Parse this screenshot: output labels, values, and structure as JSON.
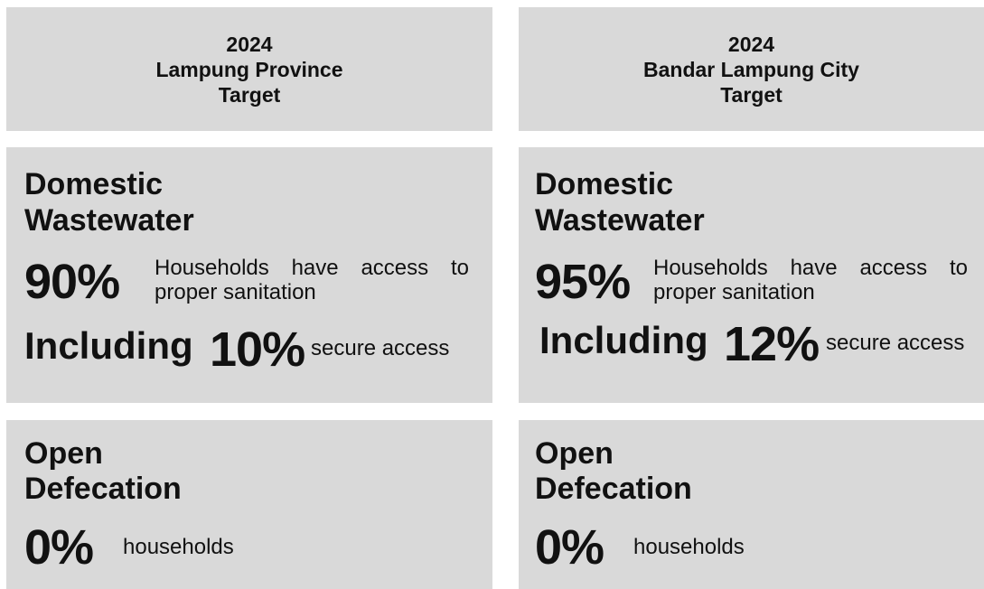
{
  "columns": [
    {
      "header": {
        "year": "2024",
        "name": "Lampung Province",
        "label": "Target"
      },
      "wastewater": {
        "title_line1": "Domestic",
        "title_line2": "Wastewater",
        "percent": "90%",
        "description": "Households have access to proper sanitation",
        "including": "Including",
        "secure_percent": "10%",
        "secure_label": "secure access"
      },
      "defecation": {
        "title_line1": "Open",
        "title_line2": "Defecation",
        "percent": "0%",
        "label": "households"
      }
    },
    {
      "header": {
        "year": "2024",
        "name": "Bandar Lampung City",
        "label": "Target"
      },
      "wastewater": {
        "title_line1": "Domestic",
        "title_line2": "Wastewater",
        "percent": "95%",
        "description": "Households have access to proper sanitation",
        "including": "Including",
        "secure_percent": "12%",
        "secure_label": "secure access"
      },
      "defecation": {
        "title_line1": "Open",
        "title_line2": "Defecation",
        "percent": "0%",
        "label": "households"
      }
    }
  ]
}
